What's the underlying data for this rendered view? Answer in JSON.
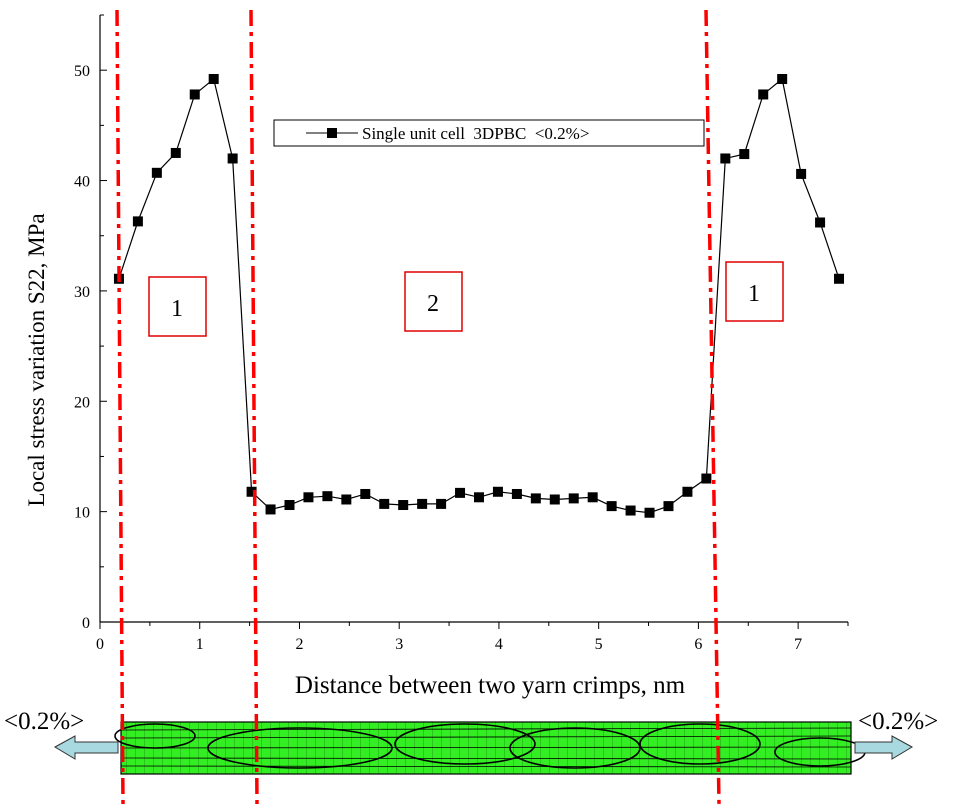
{
  "chart_data": {
    "type": "line",
    "title": "",
    "xlabel": "Distance between two yarn crimps, nm",
    "ylabel": "Local stress variation S22, MPa",
    "xlim": [
      0,
      7.5
    ],
    "ylim": [
      0,
      55
    ],
    "x_ticks": [
      0,
      1,
      2,
      3,
      4,
      5,
      6,
      7
    ],
    "y_ticks": [
      0,
      10,
      20,
      30,
      40,
      50
    ],
    "grid": false,
    "legend_position": "top-center",
    "series": [
      {
        "name": "Single unit cell  3DPBC  <0.2%>",
        "marker": "square",
        "color": "#000000",
        "x": [
          0.19,
          0.38,
          0.57,
          0.76,
          0.95,
          1.14,
          1.33,
          1.52,
          1.71,
          1.9,
          2.09,
          2.28,
          2.47,
          2.66,
          2.85,
          3.04,
          3.23,
          3.42,
          3.61,
          3.8,
          3.99,
          4.18,
          4.37,
          4.56,
          4.75,
          4.94,
          5.13,
          5.32,
          5.51,
          5.7,
          5.89,
          6.08,
          6.27,
          6.46,
          6.65,
          6.84,
          7.03,
          7.22,
          7.41
        ],
        "y": [
          31.1,
          36.3,
          40.7,
          42.5,
          47.8,
          49.2,
          42.0,
          11.8,
          10.2,
          10.6,
          11.3,
          11.4,
          11.1,
          11.6,
          10.7,
          10.6,
          10.7,
          10.7,
          11.7,
          11.3,
          11.8,
          11.6,
          11.2,
          11.1,
          11.2,
          11.3,
          10.5,
          10.1,
          9.9,
          10.5,
          11.8,
          13.0,
          42.0,
          42.4,
          47.8,
          49.2,
          40.6,
          36.2,
          31.1
        ]
      }
    ],
    "region_lines_x": [
      0.18,
      1.52,
      6.08
    ],
    "region_labels": [
      "1",
      "2",
      "1"
    ],
    "accent_color": "#ff0000",
    "mesh_color": "#33ee22",
    "arrow_color": "#a8d8e0",
    "strain_labels": [
      "<0.2%>",
      "<0.2%>"
    ]
  }
}
